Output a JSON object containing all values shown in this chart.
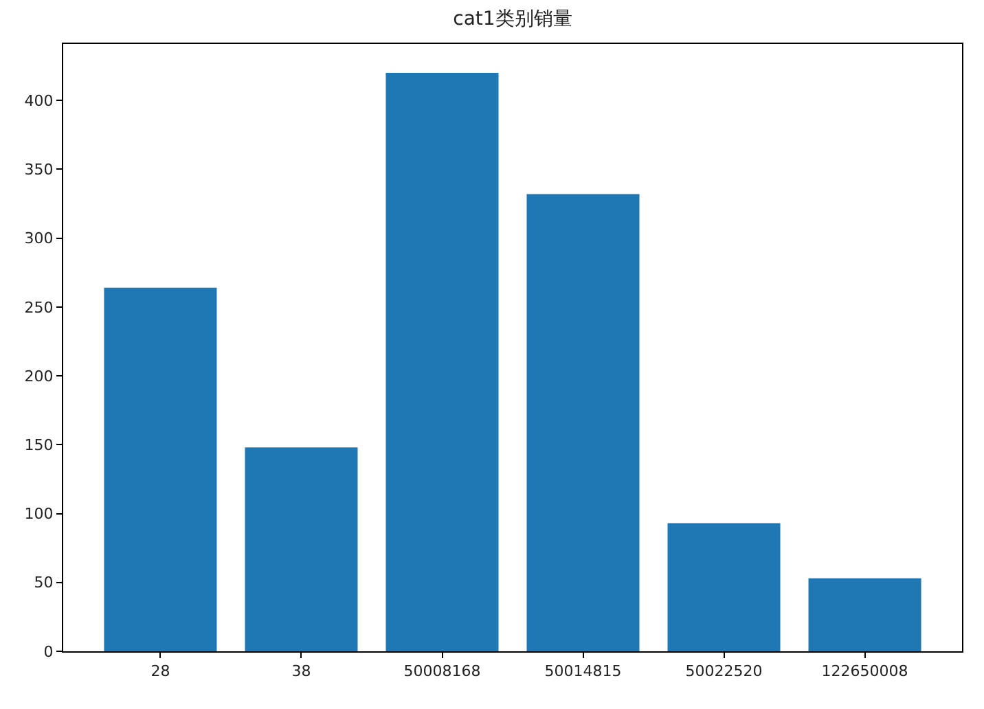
{
  "chart_data": {
    "type": "bar",
    "title": "cat1类别销量",
    "categories": [
      "28",
      "38",
      "50008168",
      "50014815",
      "50022520",
      "122650008"
    ],
    "values": [
      264,
      148,
      420,
      332,
      93,
      53
    ],
    "color": "#1f77b4",
    "ylim": [
      0,
      441
    ],
    "yticks": [
      0,
      50,
      100,
      150,
      200,
      250,
      300,
      350,
      400
    ]
  }
}
